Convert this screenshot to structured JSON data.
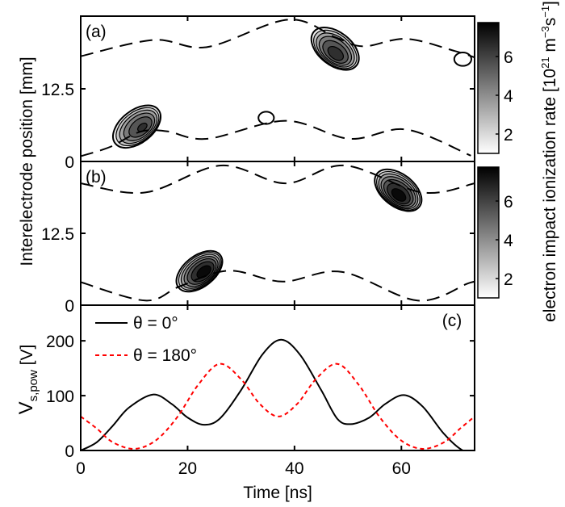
{
  "chart_data": [
    {
      "panel": "a",
      "type": "heatmap",
      "panel_label": "(a)",
      "xlim": [
        0,
        73.7
      ],
      "ylim": [
        0,
        25
      ],
      "yticks": [
        {
          "v": 0,
          "label": "0"
        },
        {
          "v": 12.5,
          "label": "12.5"
        }
      ],
      "sheath_edges": [
        {
          "name": "lower",
          "t": [
            0,
            5.5,
            11.1,
            16.1,
            23.7,
            38.3,
            50.3,
            60.9,
            73.0
          ],
          "y": [
            0.9,
            2.5,
            5.1,
            5.2,
            3.9,
            7.0,
            3.9,
            5.5,
            1.0
          ]
        },
        {
          "name": "upper",
          "t": [
            0,
            13.6,
            23.7,
            38.8,
            47.8,
            52.9,
            60.9,
            70.0,
            73.7
          ],
          "y": [
            18.1,
            20.9,
            19.7,
            24.4,
            21.3,
            19.8,
            21.1,
            19.0,
            17.9
          ]
        }
      ],
      "ionization_maxima": [
        {
          "t": 10.5,
          "y": 6.0,
          "t_extent": [
            6,
            16
          ],
          "y_extent": [
            2.5,
            10.3
          ],
          "peak": 6.2,
          "tilt": "rising"
        },
        {
          "t": 47.6,
          "y": 19.4,
          "t_extent": [
            43,
            52.8
          ],
          "y_extent": [
            14.7,
            22.6
          ],
          "peak": 6.6,
          "tilt": "falling"
        },
        {
          "t": 34.7,
          "y": 7.5,
          "t_extent": [
            33.3,
            36.2
          ],
          "y_extent": [
            6.5,
            8.6
          ],
          "peak": 1.3,
          "tilt": "none"
        },
        {
          "t": 71.5,
          "y": 17.6,
          "t_extent": [
            70.0,
            73.2
          ],
          "y_extent": [
            16.5,
            18.8
          ],
          "peak": 1.3,
          "tilt": "none"
        }
      ],
      "colorbar": {
        "range": [
          1,
          7.75
        ],
        "ticks": [
          {
            "v": 2,
            "label": "2"
          },
          {
            "v": 4,
            "label": "4"
          },
          {
            "v": 6,
            "label": "6"
          }
        ]
      }
    },
    {
      "panel": "b",
      "type": "heatmap",
      "panel_label": "(b)",
      "xlim": [
        0,
        73.7
      ],
      "ylim": [
        0,
        25
      ],
      "yticks": [
        {
          "v": 0,
          "label": "0"
        },
        {
          "v": 12.5,
          "label": "12.5"
        }
      ],
      "sheath_edges": [
        {
          "name": "lower",
          "t": [
            0,
            12.1,
            18.6,
            27.7,
            37.8,
            48.8,
            63.0,
            72.5,
            73.7
          ],
          "y": [
            4.0,
            0.8,
            3.3,
            6.0,
            4.1,
            5.8,
            0.8,
            3.8,
            4.0
          ]
        },
        {
          "name": "upper",
          "t": [
            0,
            12.1,
            26.2,
            38.3,
            49.4,
            63.9,
            73.7
          ],
          "y": [
            21.2,
            19.6,
            24.3,
            21.2,
            24.3,
            19.6,
            21.2
          ]
        }
      ],
      "ionization_maxima": [
        {
          "t": 22.2,
          "y": 5.9,
          "t_extent": [
            18.5,
            28.3
          ],
          "y_extent": [
            2.9,
            10.4
          ],
          "peak": 7.6,
          "tilt": "rising"
        },
        {
          "t": 59.4,
          "y": 20.0,
          "t_extent": [
            55,
            64.8
          ],
          "y_extent": [
            15.1,
            22.9
          ],
          "peak": 7.6,
          "tilt": "falling"
        }
      ],
      "colorbar": {
        "range": [
          1,
          7.75
        ],
        "ticks": [
          {
            "v": 2,
            "label": "2"
          },
          {
            "v": 4,
            "label": "4"
          },
          {
            "v": 6,
            "label": "6"
          }
        ]
      }
    },
    {
      "panel": "c",
      "type": "line",
      "panel_label": "(c)",
      "xlim": [
        0,
        73.7
      ],
      "ylim": [
        0,
        265
      ],
      "yticks": [
        {
          "v": 0,
          "label": "0"
        },
        {
          "v": 100,
          "label": "100"
        },
        {
          "v": 200,
          "label": "200"
        }
      ],
      "legend_position": "top-left",
      "series": [
        {
          "name": "θ = 0°",
          "color": "#000000",
          "style": "solid",
          "t": [
            0,
            3,
            6,
            9,
            13.5,
            17,
            20,
            23,
            26,
            30,
            34,
            37.5,
            41,
            45,
            48,
            50.5,
            54,
            57,
            60.5,
            64,
            68,
            71.5,
            73.7
          ],
          "v": [
            0,
            15,
            45,
            78,
            102,
            85,
            60,
            47,
            58,
            110,
            175,
            202,
            175,
            110,
            58,
            48,
            60,
            85,
            101,
            80,
            30,
            0,
            0
          ]
        },
        {
          "name": "θ = 180°",
          "color": "#ff0000",
          "style": "dashed",
          "t": [
            0,
            3,
            6,
            10,
            14,
            18,
            22,
            26,
            30,
            33.5,
            37,
            40.5,
            44,
            48,
            52,
            56,
            60,
            64,
            68,
            71,
            73.7
          ],
          "v": [
            62,
            40,
            15,
            3,
            18,
            60,
            120,
            158,
            130,
            85,
            62,
            85,
            130,
            158,
            120,
            60,
            18,
            3,
            15,
            40,
            62
          ]
        }
      ]
    }
  ],
  "axes": {
    "xticks": [
      {
        "v": 0,
        "label": "0"
      },
      {
        "v": 20,
        "label": "20"
      },
      {
        "v": 40,
        "label": "40"
      },
      {
        "v": 60,
        "label": "60"
      }
    ],
    "xlabel": "Time [ns]",
    "ylabel_position": "Interelectrode position [mm]",
    "ylabel_voltage_main": "V",
    "ylabel_voltage_sub": "s,pow",
    "ylabel_voltage_unit": " [V]",
    "colorbar_label_main": "electron impact ionization rate [10",
    "colorbar_label_exp1": "21",
    "colorbar_label_mid": " m",
    "colorbar_label_exp2": "−3",
    "colorbar_label_s": "s",
    "colorbar_label_exp3": "−1",
    "colorbar_label_end": "]"
  }
}
